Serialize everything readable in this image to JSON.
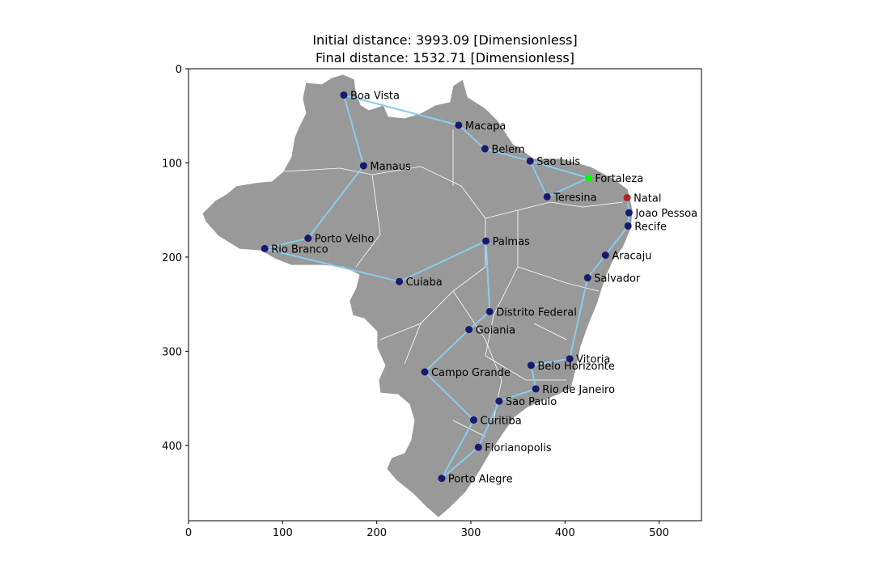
{
  "titles": {
    "line1": "Initial distance: 3993.09 [Dimensionless]",
    "line2": "Final distance: 1532.71 [Dimensionless]"
  },
  "chart_data": {
    "type": "scatter",
    "title": "Initial distance: 3993.09 [Dimensionless]\nFinal distance: 1532.71 [Dimensionless]",
    "xlim": [
      0,
      545
    ],
    "ylim": [
      480,
      0
    ],
    "y_inverted": true,
    "x_ticks": [
      0,
      100,
      200,
      300,
      400,
      500
    ],
    "y_ticks": [
      0,
      100,
      200,
      300,
      400
    ],
    "grid": false,
    "background": "map of Brazil (state borders)",
    "colors": {
      "map": "#999999",
      "route": "#87ceeb",
      "city": "#191970",
      "start": "#00ff00",
      "end": "#b22222"
    },
    "cities": [
      {
        "name": "Boa Vista",
        "x": 165,
        "y": 28
      },
      {
        "name": "Macapa",
        "x": 287,
        "y": 60
      },
      {
        "name": "Belem",
        "x": 315,
        "y": 85
      },
      {
        "name": "Sao Luis",
        "x": 363,
        "y": 98
      },
      {
        "name": "Manaus",
        "x": 186,
        "y": 103
      },
      {
        "name": "Fortaleza",
        "x": 425,
        "y": 116
      },
      {
        "name": "Teresina",
        "x": 381,
        "y": 136
      },
      {
        "name": "Natal",
        "x": 466,
        "y": 137
      },
      {
        "name": "Joao Pessoa",
        "x": 468,
        "y": 153
      },
      {
        "name": "Recife",
        "x": 467,
        "y": 167
      },
      {
        "name": "Porto Velho",
        "x": 127,
        "y": 180
      },
      {
        "name": "Palmas",
        "x": 316,
        "y": 183
      },
      {
        "name": "Rio Branco",
        "x": 81,
        "y": 191
      },
      {
        "name": "Aracaju",
        "x": 443,
        "y": 198
      },
      {
        "name": "Salvador",
        "x": 424,
        "y": 222
      },
      {
        "name": "Cuiaba",
        "x": 224,
        "y": 226
      },
      {
        "name": "Distrito Federal",
        "x": 320,
        "y": 258
      },
      {
        "name": "Goiania",
        "x": 298,
        "y": 277
      },
      {
        "name": "Vitoria",
        "x": 405,
        "y": 308
      },
      {
        "name": "Belo Horizonte",
        "x": 364,
        "y": 315
      },
      {
        "name": "Campo Grande",
        "x": 251,
        "y": 322
      },
      {
        "name": "Rio de Janeiro",
        "x": 369,
        "y": 340
      },
      {
        "name": "Sao Paulo",
        "x": 330,
        "y": 353
      },
      {
        "name": "Curitiba",
        "x": 303,
        "y": 373
      },
      {
        "name": "Florianopolis",
        "x": 308,
        "y": 402
      },
      {
        "name": "Porto Alegre",
        "x": 269,
        "y": 435
      }
    ],
    "start_city": "Fortaleza",
    "end_city": "Natal",
    "route": [
      "Fortaleza",
      "Sao Luis",
      "Belem",
      "Macapa",
      "Boa Vista",
      "Manaus",
      "Porto Velho",
      "Rio Branco",
      "Cuiaba",
      "Palmas",
      "Distrito Federal",
      "Goiania",
      "Campo Grande",
      "Curitiba",
      "Porto Alegre",
      "Florianopolis",
      "Sao Paulo",
      "Rio de Janeiro",
      "Belo Horizonte",
      "Vitoria",
      "Salvador",
      "Aracaju",
      "Recife",
      "Joao Pessoa",
      "Natal"
    ],
    "route_extra_segments": [
      [
        "Teresina",
        "Fortaleza"
      ],
      [
        "Teresina",
        "Sao Luis"
      ]
    ]
  }
}
